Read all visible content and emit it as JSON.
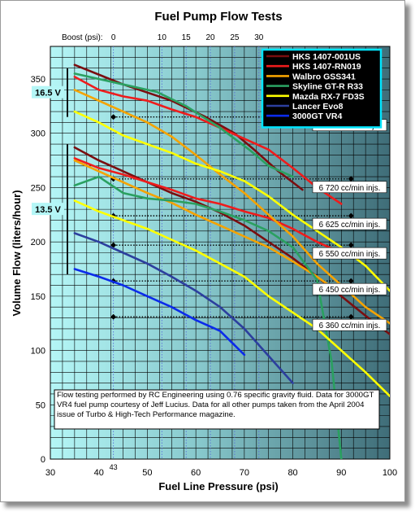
{
  "chart_data": {
    "type": "line",
    "title": "Fuel Pump Flow Tests",
    "xlabel": "Fuel Line Pressure (psi)",
    "ylabel": "Volume Flow (liters/hour)",
    "xlim": [
      30,
      100
    ],
    "ylim": [
      0,
      380
    ],
    "x_ticks": [
      "30",
      "40",
      "50",
      "60",
      "70",
      "80",
      "90",
      "100"
    ],
    "x_extra_tick": {
      "value": 43,
      "label": "43"
    },
    "y_ticks": [
      "0",
      "50",
      "100",
      "150",
      "200",
      "250",
      "300",
      "350"
    ],
    "grid": true,
    "legend_position": "top-right",
    "boost_axis": {
      "label": "Boost (psi):",
      "ticks": [
        {
          "label": "0",
          "psi": 43
        },
        {
          "label": "10",
          "psi": 53
        },
        {
          "label": "15",
          "psi": 58
        },
        {
          "label": "20",
          "psi": 63
        },
        {
          "label": "25",
          "psi": 68
        },
        {
          "label": "30",
          "psi": 73
        }
      ]
    },
    "voltage_labels": [
      {
        "label": "16.5 V",
        "range": [
          315,
          360
        ]
      },
      {
        "label": "13.5 V",
        "range": [
          170,
          290
        ]
      }
    ],
    "injector_markers": [
      {
        "label": "6 880 cc/min injs.",
        "y": 315
      },
      {
        "label": "6 720 cc/min injs.",
        "y": 258
      },
      {
        "label": "6 625 cc/min injs.",
        "y": 224
      },
      {
        "label": "6 550 cc/min injs.",
        "y": 197
      },
      {
        "label": "6 450 cc/min injs.",
        "y": 164
      },
      {
        "label": "6 360 cc/min injs.",
        "y": 131
      }
    ],
    "marker_x": [
      43,
      92
    ],
    "note": "Flow testing performed by RC Engineering using 0.76 specific gravity fluid. Data for 3000GT VR4 fuel pump courtesy of Jeff Lucius. Data for all other pumps taken from the April 2004 issue of Turbo & High-Tech Performance magazine.",
    "series": [
      {
        "name": "HKS 1407-001US",
        "color": "#7a0e10",
        "curves": [
          {
            "x": [
              35,
              45,
              55,
              62,
              68,
              72,
              77,
              82
            ],
            "y": [
              363,
              345,
              330,
              315,
              300,
              285,
              265,
              248
            ]
          },
          {
            "x": [
              35,
              40,
              45,
              50,
              55,
              60,
              65,
              70,
              75,
              80,
              85,
              90,
              95,
              100
            ],
            "y": [
              287,
              275,
              265,
              255,
              245,
              237,
              227,
              215,
              200,
              185,
              168,
              150,
              132,
              115
            ]
          }
        ]
      },
      {
        "name": "HKS 1407-RN019",
        "color": "#ee1c1c",
        "curves": [
          {
            "x": [
              35,
              40,
              45,
              50,
              55,
              60,
              65,
              70,
              75,
              80,
              85,
              90
            ],
            "y": [
              352,
              340,
              334,
              330,
              322,
              315,
              305,
              295,
              285,
              268,
              250,
              235
            ]
          },
          {
            "x": [
              35,
              40,
              45,
              50,
              55,
              60,
              65,
              70,
              75,
              80,
              85,
              90
            ],
            "y": [
              277,
              268,
              262,
              255,
              248,
              240,
              235,
              228,
              222,
              212,
              200,
              190
            ]
          }
        ]
      },
      {
        "name": "Walbro GSS341",
        "color": "#f5a300",
        "curves": [
          {
            "x": [
              35,
              40,
              45,
              50,
              55,
              60,
              65,
              70,
              75,
              80,
              85,
              90,
              95,
              100
            ],
            "y": [
              340,
              330,
              320,
              310,
              297,
              280,
              262,
              245,
              225,
              205,
              180,
              160,
              140,
              125
            ]
          },
          {
            "x": [
              35,
              40,
              45,
              50,
              55,
              60,
              65,
              70,
              75,
              80,
              85,
              90
            ],
            "y": [
              275,
              265,
              255,
              245,
              236,
              225,
              215,
              205,
              195,
              182,
              168,
              152
            ]
          }
        ]
      },
      {
        "name": "Skyline GT-R R33",
        "color": "#2aa060",
        "curves": [
          {
            "x": [
              35,
              45,
              52,
              58,
              65,
              71,
              75,
              80
            ],
            "y": [
              355,
              345,
              338,
              325,
              305,
              285,
              270,
              260
            ]
          },
          {
            "x": [
              35,
              40,
              45,
              50,
              55,
              60,
              65,
              70,
              75,
              80,
              85,
              88,
              90
            ],
            "y": [
              252,
              260,
              245,
              240,
              238,
              235,
              228,
              220,
              210,
              195,
              165,
              90,
              0
            ]
          }
        ]
      },
      {
        "name": "Mazda RX-7 FD3S",
        "color": "#ffff00",
        "curves": [
          {
            "x": [
              35,
              40,
              45,
              50,
              55,
              60,
              65,
              70,
              75,
              80,
              85,
              90,
              95,
              100
            ],
            "y": [
              320,
              310,
              298,
              290,
              282,
              272,
              265,
              256,
              242,
              225,
              210,
              195,
              178,
              155
            ]
          },
          {
            "x": [
              35,
              40,
              45,
              50,
              55,
              60,
              65,
              70,
              75,
              80,
              85,
              90,
              95,
              100
            ],
            "y": [
              238,
              228,
              220,
              212,
              202,
              192,
              180,
              168,
              150,
              135,
              120,
              100,
              80,
              58
            ]
          }
        ]
      },
      {
        "name": "Lancer Evo8",
        "color": "#2c3f9e",
        "curves": [
          {
            "x": [
              35,
              40,
              45,
              50,
              55,
              60,
              65,
              70,
              75,
              80
            ],
            "y": [
              208,
              200,
              190,
              180,
              168,
              155,
              140,
              120,
              95,
              70
            ]
          }
        ]
      },
      {
        "name": "3000GT VR4",
        "color": "#0b2bea",
        "curves": [
          {
            "x": [
              35,
              40,
              45,
              50,
              55,
              60,
              65,
              70
            ],
            "y": [
              175,
              168,
              160,
              150,
              140,
              128,
              118,
              96
            ]
          }
        ]
      }
    ]
  }
}
